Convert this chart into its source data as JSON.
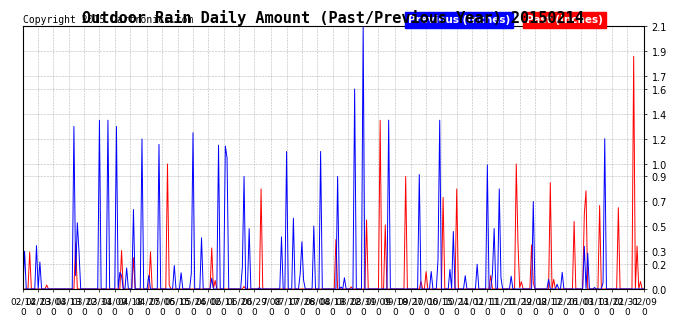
{
  "title": "Outdoor Rain Daily Amount (Past/Previous Year) 20150214",
  "copyright": "Copyright 2015 Cartronics.com",
  "legend_labels": [
    "Previous (Inches)",
    "Past (Inches)"
  ],
  "legend_colors": [
    "blue",
    "red"
  ],
  "legend_text_color": "white",
  "ylim": [
    0.0,
    2.1
  ],
  "yticks": [
    0.0,
    0.2,
    0.3,
    0.5,
    0.7,
    0.9,
    1.0,
    1.2,
    1.4,
    1.6,
    1.7,
    1.9,
    2.1
  ],
  "background_color": "white",
  "grid_color": "#888888",
  "line_color_previous": "blue",
  "line_color_past": "red",
  "title_fontsize": 11,
  "copyright_fontsize": 7,
  "tick_fontsize": 7,
  "x_tick_labels": [
    "02/14",
    "02/23",
    "03/04",
    "03/13",
    "03/22",
    "03/31",
    "04/09",
    "04/18",
    "04/27",
    "05/06",
    "05/15",
    "05/24",
    "06/02",
    "06/11",
    "06/20",
    "06/29",
    "7/08",
    "07/17",
    "07/26",
    "08/04",
    "08/13",
    "08/22",
    "08/31",
    "09/09",
    "09/18",
    "09/27",
    "10/06",
    "10/15",
    "10/24",
    "11/02",
    "11/11",
    "11/20",
    "11/29",
    "12/08",
    "12/17",
    "12/26",
    "01/03",
    "01/13",
    "01/22",
    "01/31",
    "02/09"
  ],
  "num_days": 366
}
